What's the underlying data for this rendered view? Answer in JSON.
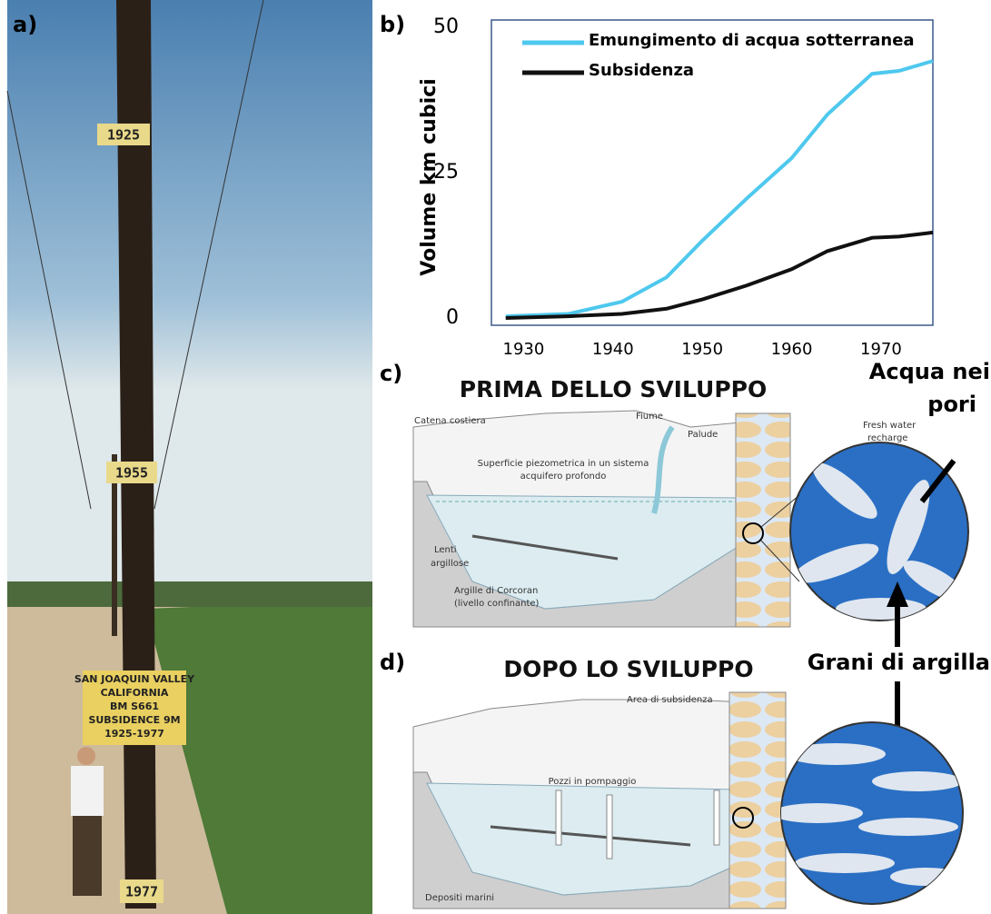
{
  "panel_a": {
    "label": "a)",
    "signs": [
      "1925",
      "1955",
      "1977"
    ],
    "board": [
      "SAN JOAQUIN VALLEY",
      "CALIFORNIA",
      "BM S661",
      "SUBSIDENCE 9M",
      "1925-1977"
    ]
  },
  "chart_data": {
    "type": "line",
    "label": "b)",
    "y_label": "Volume km cubici",
    "x": [
      1928,
      1935,
      1941,
      1946,
      1950,
      1955,
      1960,
      1964,
      1969,
      1972,
      1975.8
    ],
    "series": [
      {
        "name": "Emungimento di acqua sotterranea",
        "color": "#4ec8ee",
        "values": [
          0.3,
          0.7,
          2.8,
          7,
          13.3,
          20.6,
          27.5,
          35,
          42,
          42.5,
          44.2
        ]
      },
      {
        "name": "Subsidenza",
        "color": "#111111",
        "values": [
          0,
          0.3,
          0.7,
          1.6,
          3.2,
          5.6,
          8.4,
          11.5,
          13.8,
          14,
          14.7
        ]
      }
    ],
    "xlim": [
      1926.4,
      1975.8
    ],
    "xticks": [
      1930,
      1940,
      1950,
      1960,
      1970
    ],
    "ylim": [
      -1.25,
      51.25
    ],
    "yticks": [
      0,
      25,
      50
    ],
    "grid": false,
    "legend": "top-left"
  },
  "panel_c": {
    "label": "c)",
    "title": "PRIMA DELLO SVILUPPO",
    "coast": "Catena costiera",
    "river": "Fiume",
    "marsh": "Palude",
    "piezo": [
      "Superficie piezometrica in un sistema",
      "acquifero profondo"
    ],
    "lenses": [
      "Lenti",
      "argillose"
    ],
    "corcoran": [
      "Argille di Corcoran",
      "(livello confinante)"
    ],
    "recharge": [
      "Fresh water",
      "recharge"
    ],
    "pore_water": [
      "Acqua nei",
      "pori"
    ],
    "clay_grains": "Grani di argilla"
  },
  "panel_d": {
    "label": "d)",
    "title": "DOPO LO SVILUPPO",
    "subsidence_area": "Area di subsidenza",
    "wells": "Pozzi in pompaggio",
    "marine": "Depositi marini"
  }
}
